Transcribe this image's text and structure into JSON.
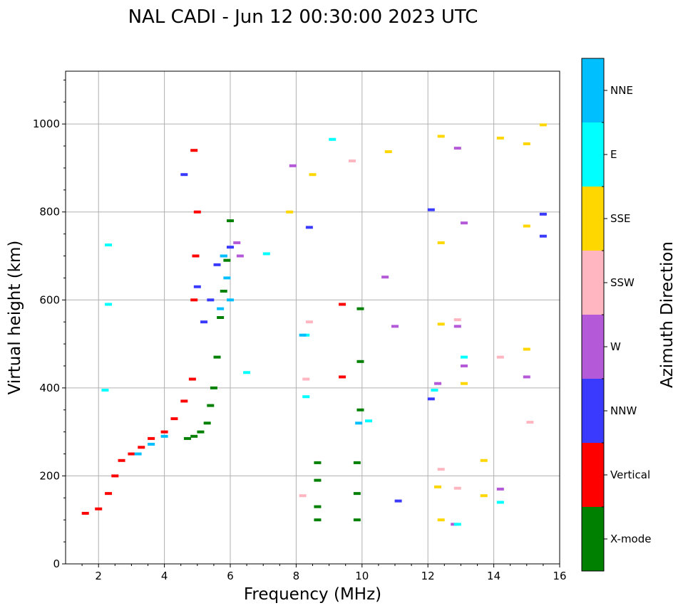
{
  "chart_data": {
    "type": "scatter",
    "title": "NAL CADI - Jun 12 00:30:00 2023 UTC",
    "xlabel": "Frequency (MHz)",
    "ylabel": "Virtual height (km)",
    "xlim": [
      1,
      16
    ],
    "ylim": [
      0,
      1120
    ],
    "xticks": [
      "2",
      "4",
      "6",
      "8",
      "10",
      "12",
      "14",
      "16"
    ],
    "yticks": [
      "0",
      "200",
      "400",
      "600",
      "800",
      "1000"
    ],
    "grid": true,
    "colorbar": {
      "label": "Azimuth Direction",
      "categories": [
        "X-mode",
        "Vertical",
        "NNW",
        "W",
        "SSW",
        "SSE",
        "E",
        "NNE"
      ],
      "colors": [
        "#008000",
        "#ff0000",
        "#3a3aff",
        "#b45ad8",
        "#ffb6c1",
        "#ffd700",
        "#00ffff",
        "#00bfff"
      ]
    },
    "series": [
      {
        "name": "X-mode",
        "points": [
          [
            4.7,
            285
          ],
          [
            4.9,
            290
          ],
          [
            5.1,
            300
          ],
          [
            5.3,
            320
          ],
          [
            5.4,
            360
          ],
          [
            5.5,
            400
          ],
          [
            5.6,
            470
          ],
          [
            5.7,
            560
          ],
          [
            5.8,
            620
          ],
          [
            5.9,
            690
          ],
          [
            6.0,
            780
          ],
          [
            8.65,
            100
          ],
          [
            8.65,
            130
          ],
          [
            8.65,
            190
          ],
          [
            8.65,
            230
          ],
          [
            9.85,
            100
          ],
          [
            9.85,
            160
          ],
          [
            9.85,
            230
          ],
          [
            9.95,
            350
          ],
          [
            9.95,
            460
          ],
          [
            9.95,
            580
          ]
        ]
      },
      {
        "name": "Vertical",
        "points": [
          [
            1.6,
            115
          ],
          [
            2.0,
            125
          ],
          [
            2.3,
            160
          ],
          [
            2.5,
            200
          ],
          [
            2.7,
            235
          ],
          [
            3.0,
            250
          ],
          [
            3.3,
            265
          ],
          [
            3.6,
            285
          ],
          [
            4.0,
            300
          ],
          [
            4.3,
            330
          ],
          [
            4.6,
            370
          ],
          [
            4.85,
            420
          ],
          [
            4.9,
            600
          ],
          [
            4.95,
            700
          ],
          [
            5.0,
            800
          ],
          [
            4.9,
            940
          ],
          [
            9.4,
            590
          ],
          [
            9.4,
            425
          ]
        ]
      },
      {
        "name": "NNW",
        "points": [
          [
            4.6,
            885
          ],
          [
            5.0,
            630
          ],
          [
            5.2,
            550
          ],
          [
            5.4,
            600
          ],
          [
            5.6,
            680
          ],
          [
            5.8,
            700
          ],
          [
            6.0,
            720
          ],
          [
            8.4,
            765
          ],
          [
            12.1,
            805
          ],
          [
            12.1,
            375
          ],
          [
            15.5,
            745
          ],
          [
            15.5,
            795
          ],
          [
            11.1,
            143
          ]
        ]
      },
      {
        "name": "W",
        "points": [
          [
            7.9,
            905
          ],
          [
            6.2,
            730
          ],
          [
            6.3,
            700
          ],
          [
            10.7,
            652
          ],
          [
            11.0,
            540
          ],
          [
            12.9,
            540
          ],
          [
            13.1,
            450
          ],
          [
            13.1,
            775
          ],
          [
            12.9,
            945
          ],
          [
            14.2,
            170
          ],
          [
            15.0,
            425
          ],
          [
            12.3,
            410
          ],
          [
            12.8,
            90
          ]
        ]
      },
      {
        "name": "SSW",
        "points": [
          [
            8.4,
            550
          ],
          [
            8.3,
            420
          ],
          [
            8.2,
            155
          ],
          [
            12.4,
            215
          ],
          [
            12.9,
            555
          ],
          [
            12.9,
            172
          ],
          [
            14.2,
            470
          ],
          [
            15.1,
            322
          ],
          [
            9.7,
            916
          ]
        ]
      },
      {
        "name": "SSE",
        "points": [
          [
            7.8,
            800
          ],
          [
            8.5,
            885
          ],
          [
            10.8,
            937
          ],
          [
            12.4,
            972
          ],
          [
            12.4,
            730
          ],
          [
            12.4,
            545
          ],
          [
            13.1,
            410
          ],
          [
            13.7,
            235
          ],
          [
            13.7,
            155
          ],
          [
            14.2,
            968
          ],
          [
            15.0,
            955
          ],
          [
            15.0,
            768
          ],
          [
            15.0,
            488
          ],
          [
            15.5,
            998
          ],
          [
            12.3,
            175
          ],
          [
            12.4,
            100
          ]
        ]
      },
      {
        "name": "E",
        "points": [
          [
            2.3,
            725
          ],
          [
            2.3,
            590
          ],
          [
            2.2,
            395
          ],
          [
            6.5,
            435
          ],
          [
            7.1,
            705
          ],
          [
            8.3,
            520
          ],
          [
            8.3,
            380
          ],
          [
            9.1,
            965
          ],
          [
            10.2,
            325
          ],
          [
            12.2,
            395
          ],
          [
            13.1,
            470
          ],
          [
            14.2,
            140
          ],
          [
            12.9,
            90
          ]
        ]
      },
      {
        "name": "NNE",
        "points": [
          [
            5.8,
            700
          ],
          [
            5.9,
            650
          ],
          [
            6.0,
            600
          ],
          [
            5.7,
            580
          ],
          [
            4.0,
            290
          ],
          [
            3.6,
            272
          ],
          [
            3.2,
            250
          ],
          [
            8.2,
            520
          ],
          [
            9.9,
            320
          ]
        ]
      }
    ]
  }
}
